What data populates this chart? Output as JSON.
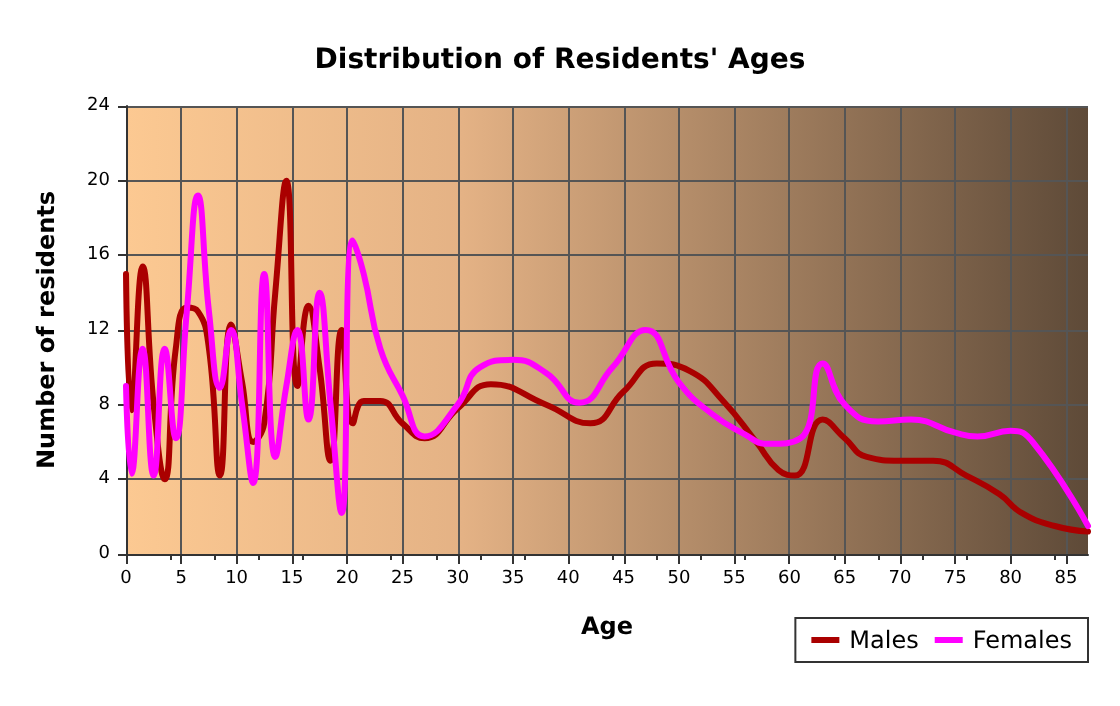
{
  "chart_data": {
    "type": "line",
    "title": "Distribution of Residents' Ages",
    "xlabel": "Age",
    "ylabel": "Number of residents",
    "xlim": [
      0,
      87
    ],
    "xticks": [
      0,
      5,
      10,
      15,
      20,
      25,
      30,
      35,
      40,
      45,
      50,
      55,
      60,
      65,
      70,
      75,
      80,
      85
    ],
    "ylim": [
      0,
      24
    ],
    "yticks": [
      0,
      4,
      8,
      12,
      16,
      20,
      24
    ],
    "grid": true,
    "legend": "bottom right",
    "marker": "none",
    "line_style": "solid",
    "series": [
      {
        "name": "Males",
        "color": "#aa0000",
        "x": [
          0,
          0.5,
          1.5,
          2.5,
          3.5,
          4.5,
          5.5,
          6.5,
          7.5,
          8.5,
          9.5,
          10.5,
          11.5,
          12.5,
          13.5,
          14.5,
          15.5,
          16.5,
          17.5,
          18.5,
          19.5,
          20.5,
          21.5,
          23,
          25,
          27,
          30,
          33,
          38,
          42,
          45,
          48,
          51,
          54,
          57,
          59,
          60.5,
          63,
          65,
          67,
          70,
          73,
          76,
          79,
          81,
          84,
          87
        ],
        "values": [
          15,
          7.7,
          15.4,
          8,
          4,
          11,
          13.2,
          13,
          11,
          4.2,
          12.3,
          9.2,
          6,
          7,
          14,
          20,
          9,
          13.3,
          10,
          5,
          12,
          7,
          8.2,
          8.2,
          7,
          6.2,
          7.8,
          9.1,
          8,
          7,
          8.7,
          10.2,
          9.8,
          8.2,
          6,
          4.5,
          4.2,
          7.2,
          6.2,
          5.2,
          5,
          5,
          4.2,
          3.2,
          2.2,
          1.5,
          1.2
        ]
      },
      {
        "name": "Females",
        "color": "#ff00ff",
        "x": [
          0,
          0.5,
          1.5,
          2.5,
          3.5,
          4.5,
          5.5,
          6.5,
          7.5,
          8.5,
          9.5,
          10.5,
          11.5,
          12.5,
          13.5,
          14.5,
          15.5,
          16.5,
          17.5,
          18.5,
          19.5,
          20.5,
          21.5,
          23,
          25,
          27,
          30,
          32,
          35,
          38,
          41,
          44,
          47,
          50,
          53,
          56,
          58,
          61,
          63,
          65,
          68,
          71,
          75,
          77,
          80,
          82,
          87
        ],
        "values": [
          9,
          4.3,
          11,
          4.2,
          11,
          6.2,
          13,
          19.2,
          13,
          8.9,
          12,
          8,
          3.8,
          15,
          5.2,
          9,
          12,
          7.2,
          14,
          8,
          2.2,
          16.8,
          15,
          11,
          8.5,
          6.3,
          8,
          10,
          10.4,
          9.7,
          8.1,
          10,
          12,
          9.2,
          7.5,
          6.4,
          5.9,
          6.2,
          10.2,
          8,
          7.1,
          7.2,
          6.5,
          6.3,
          6.6,
          6,
          1.5
        ]
      }
    ]
  }
}
